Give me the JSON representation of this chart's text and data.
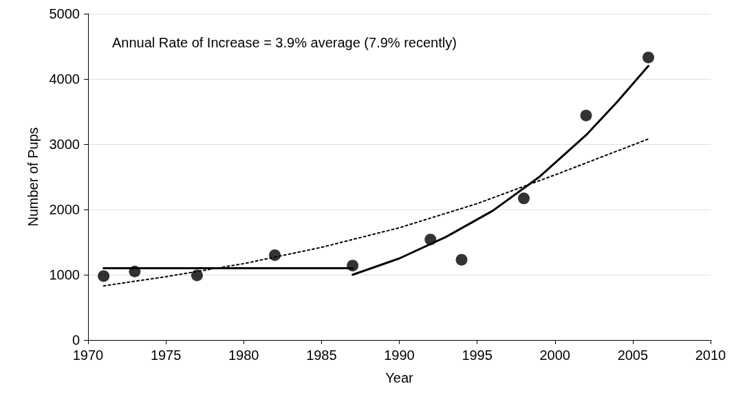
{
  "chart_data": {
    "type": "scatter",
    "xlabel": "Year",
    "ylabel": "Number of Pups",
    "annotations": [
      "Annual Rate of Increase = 3.9% average (7.9% recently)"
    ],
    "xlim": [
      1970,
      2010
    ],
    "xticks": [
      1970,
      1975,
      1980,
      1985,
      1990,
      1995,
      2000,
      2005,
      2010
    ],
    "ylim": [
      0,
      5000
    ],
    "yticks": [
      0,
      1000,
      2000,
      3000,
      4000,
      5000
    ],
    "grid": "y",
    "series": [
      {
        "color": "#000000",
        "marker": "circle",
        "x": [
          1971,
          1973,
          1977,
          1982,
          1987,
          1992,
          1994,
          1998,
          2002,
          2006
        ],
        "values": [
          980,
          1050,
          990,
          1300,
          1140,
          1540,
          1230,
          2170,
          3440,
          4330
        ]
      },
      {
        "type": "line",
        "color": "#000000",
        "line_style": "solid",
        "x": [
          1971,
          1987
        ],
        "values": [
          1100,
          1100
        ]
      },
      {
        "type": "line",
        "color": "#000000",
        "line_style": "solid",
        "x": [
          1987,
          1990,
          1993,
          1996,
          1999,
          2002,
          2004,
          2006
        ],
        "values": [
          1000,
          1250,
          1580,
          1980,
          2500,
          3140,
          3650,
          4200
        ]
      },
      {
        "type": "line",
        "color": "#000000",
        "line_style": "dotted",
        "x": [
          1971,
          1975,
          1980,
          1985,
          1990,
          1995,
          2000,
          2006
        ],
        "values": [
          830,
          970,
          1170,
          1420,
          1720,
          2090,
          2530,
          3080
        ]
      }
    ]
  }
}
